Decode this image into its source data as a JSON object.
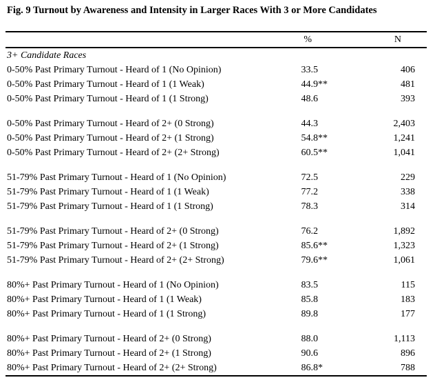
{
  "title": "Fig. 9 Turnout by Awareness and Intensity in Larger Races With 3 or More Candidates",
  "table": {
    "columns": {
      "pct": "%",
      "n": "N"
    },
    "rows": [
      {
        "type": "section",
        "label": "3+ Candidate Races"
      },
      {
        "type": "data",
        "label": "0-50% Past Primary Turnout - Heard of 1 (No Opinion)",
        "pct": "33.5",
        "stars": "",
        "n": "406"
      },
      {
        "type": "data",
        "label": "0-50% Past Primary Turnout - Heard of 1 (1 Weak)",
        "pct": "44.9",
        "stars": "**",
        "n": "481"
      },
      {
        "type": "data",
        "label": "0-50% Past Primary Turnout - Heard of 1 (1 Strong)",
        "pct": "48.6",
        "stars": "",
        "n": "393"
      },
      {
        "type": "spacer"
      },
      {
        "type": "data",
        "label": "0-50% Past Primary Turnout - Heard of 2+ (0 Strong)",
        "pct": "44.3",
        "stars": "",
        "n": "2,403"
      },
      {
        "type": "data",
        "label": "0-50% Past Primary Turnout - Heard of 2+ (1 Strong)",
        "pct": "54.8",
        "stars": "**",
        "n": "1,241"
      },
      {
        "type": "data",
        "label": "0-50% Past Primary Turnout - Heard of 2+ (2+ Strong)",
        "pct": "60.5",
        "stars": "**",
        "n": "1,041"
      },
      {
        "type": "spacer"
      },
      {
        "type": "data",
        "label": "51-79% Past Primary Turnout - Heard of 1 (No Opinion)",
        "pct": "72.5",
        "stars": "",
        "n": "229"
      },
      {
        "type": "data",
        "label": "51-79% Past Primary Turnout - Heard of 1 (1 Weak)",
        "pct": "77.2",
        "stars": "",
        "n": "338"
      },
      {
        "type": "data",
        "label": "51-79% Past Primary Turnout - Heard of 1 (1 Strong)",
        "pct": "78.3",
        "stars": "",
        "n": "314"
      },
      {
        "type": "spacer"
      },
      {
        "type": "data",
        "label": "51-79% Past Primary Turnout - Heard of 2+ (0 Strong)",
        "pct": "76.2",
        "stars": "",
        "n": "1,892"
      },
      {
        "type": "data",
        "label": "51-79% Past Primary Turnout - Heard of 2+ (1 Strong)",
        "pct": "85.6",
        "stars": "**",
        "n": "1,323"
      },
      {
        "type": "data",
        "label": "51-79% Past Primary Turnout - Heard of 2+ (2+ Strong)",
        "pct": "79.6",
        "stars": "**",
        "n": "1,061"
      },
      {
        "type": "spacer"
      },
      {
        "type": "data",
        "label": "80%+ Past Primary Turnout - Heard of 1 (No Opinion)",
        "pct": "83.5",
        "stars": "",
        "n": "115"
      },
      {
        "type": "data",
        "label": "80%+ Past Primary Turnout - Heard of 1 (1 Weak)",
        "pct": "85.8",
        "stars": "",
        "n": "183"
      },
      {
        "type": "data",
        "label": "80%+ Past Primary Turnout - Heard of 1 (1 Strong)",
        "pct": "89.8",
        "stars": "",
        "n": "177"
      },
      {
        "type": "spacer"
      },
      {
        "type": "data",
        "label": "80%+ Past Primary Turnout - Heard of 2+ (0 Strong)",
        "pct": "88.0",
        "stars": "",
        "n": "1,113"
      },
      {
        "type": "data",
        "label": "80%+ Past Primary Turnout - Heard of 2+ (1 Strong)",
        "pct": "90.6",
        "stars": "",
        "n": "896"
      },
      {
        "type": "data",
        "label": "80%+ Past Primary Turnout - Heard of 2+ (2+ Strong)",
        "pct": "86.8",
        "stars": "*",
        "n": "788"
      }
    ]
  }
}
